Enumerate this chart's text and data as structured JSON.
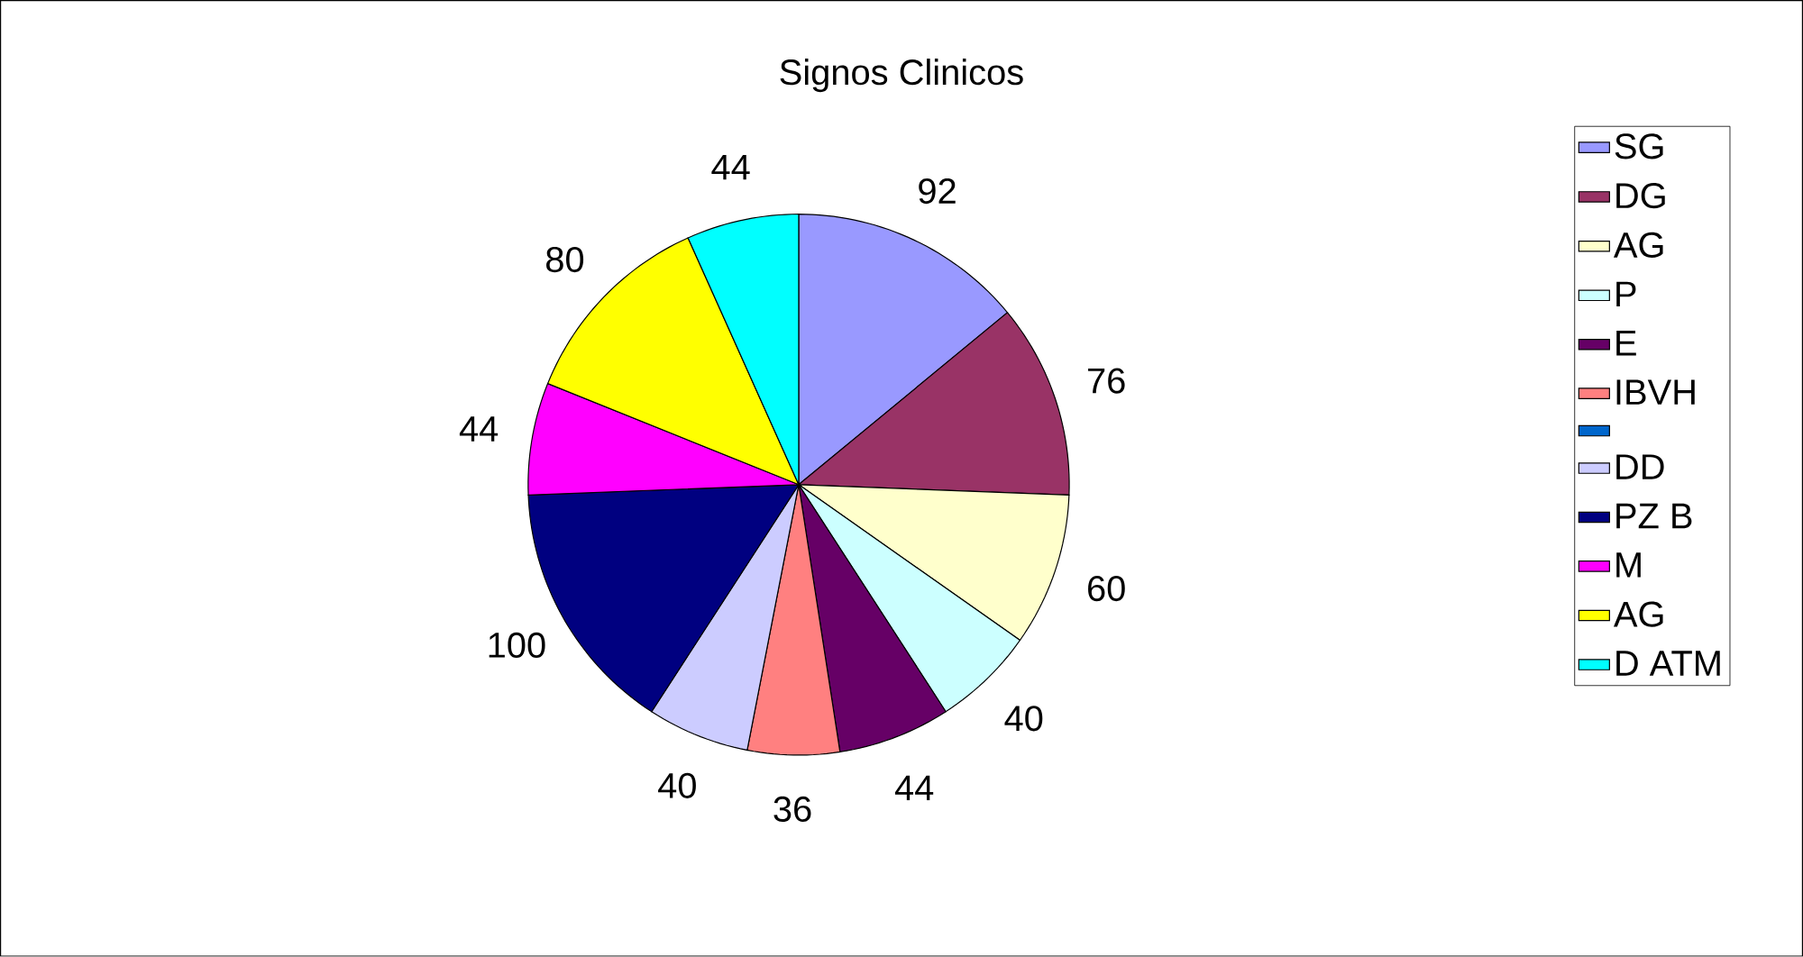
{
  "chart_data": {
    "type": "pie",
    "title": "Signos Clinicos",
    "categories": [
      "SG",
      "DG",
      "AG",
      "P",
      "E",
      "IBVH",
      null,
      "DD",
      "PZ B",
      "M",
      "AG",
      "D ATM"
    ],
    "values": [
      92,
      76,
      60,
      40,
      44,
      36,
      0,
      40,
      100,
      44,
      80,
      44
    ],
    "value_labels": [
      "92",
      "76",
      "60",
      "40",
      "44",
      "36",
      null,
      "40",
      "100",
      "44",
      "80",
      "44"
    ],
    "colors": [
      "#9999ff",
      "#993366",
      "#ffffcc",
      "#ccffff",
      "#660066",
      "#ff8080",
      "#0066cc",
      "#ccccff",
      "#000080",
      "#ff00ff",
      "#ffff00",
      "#00ffff"
    ],
    "legend": "right"
  }
}
